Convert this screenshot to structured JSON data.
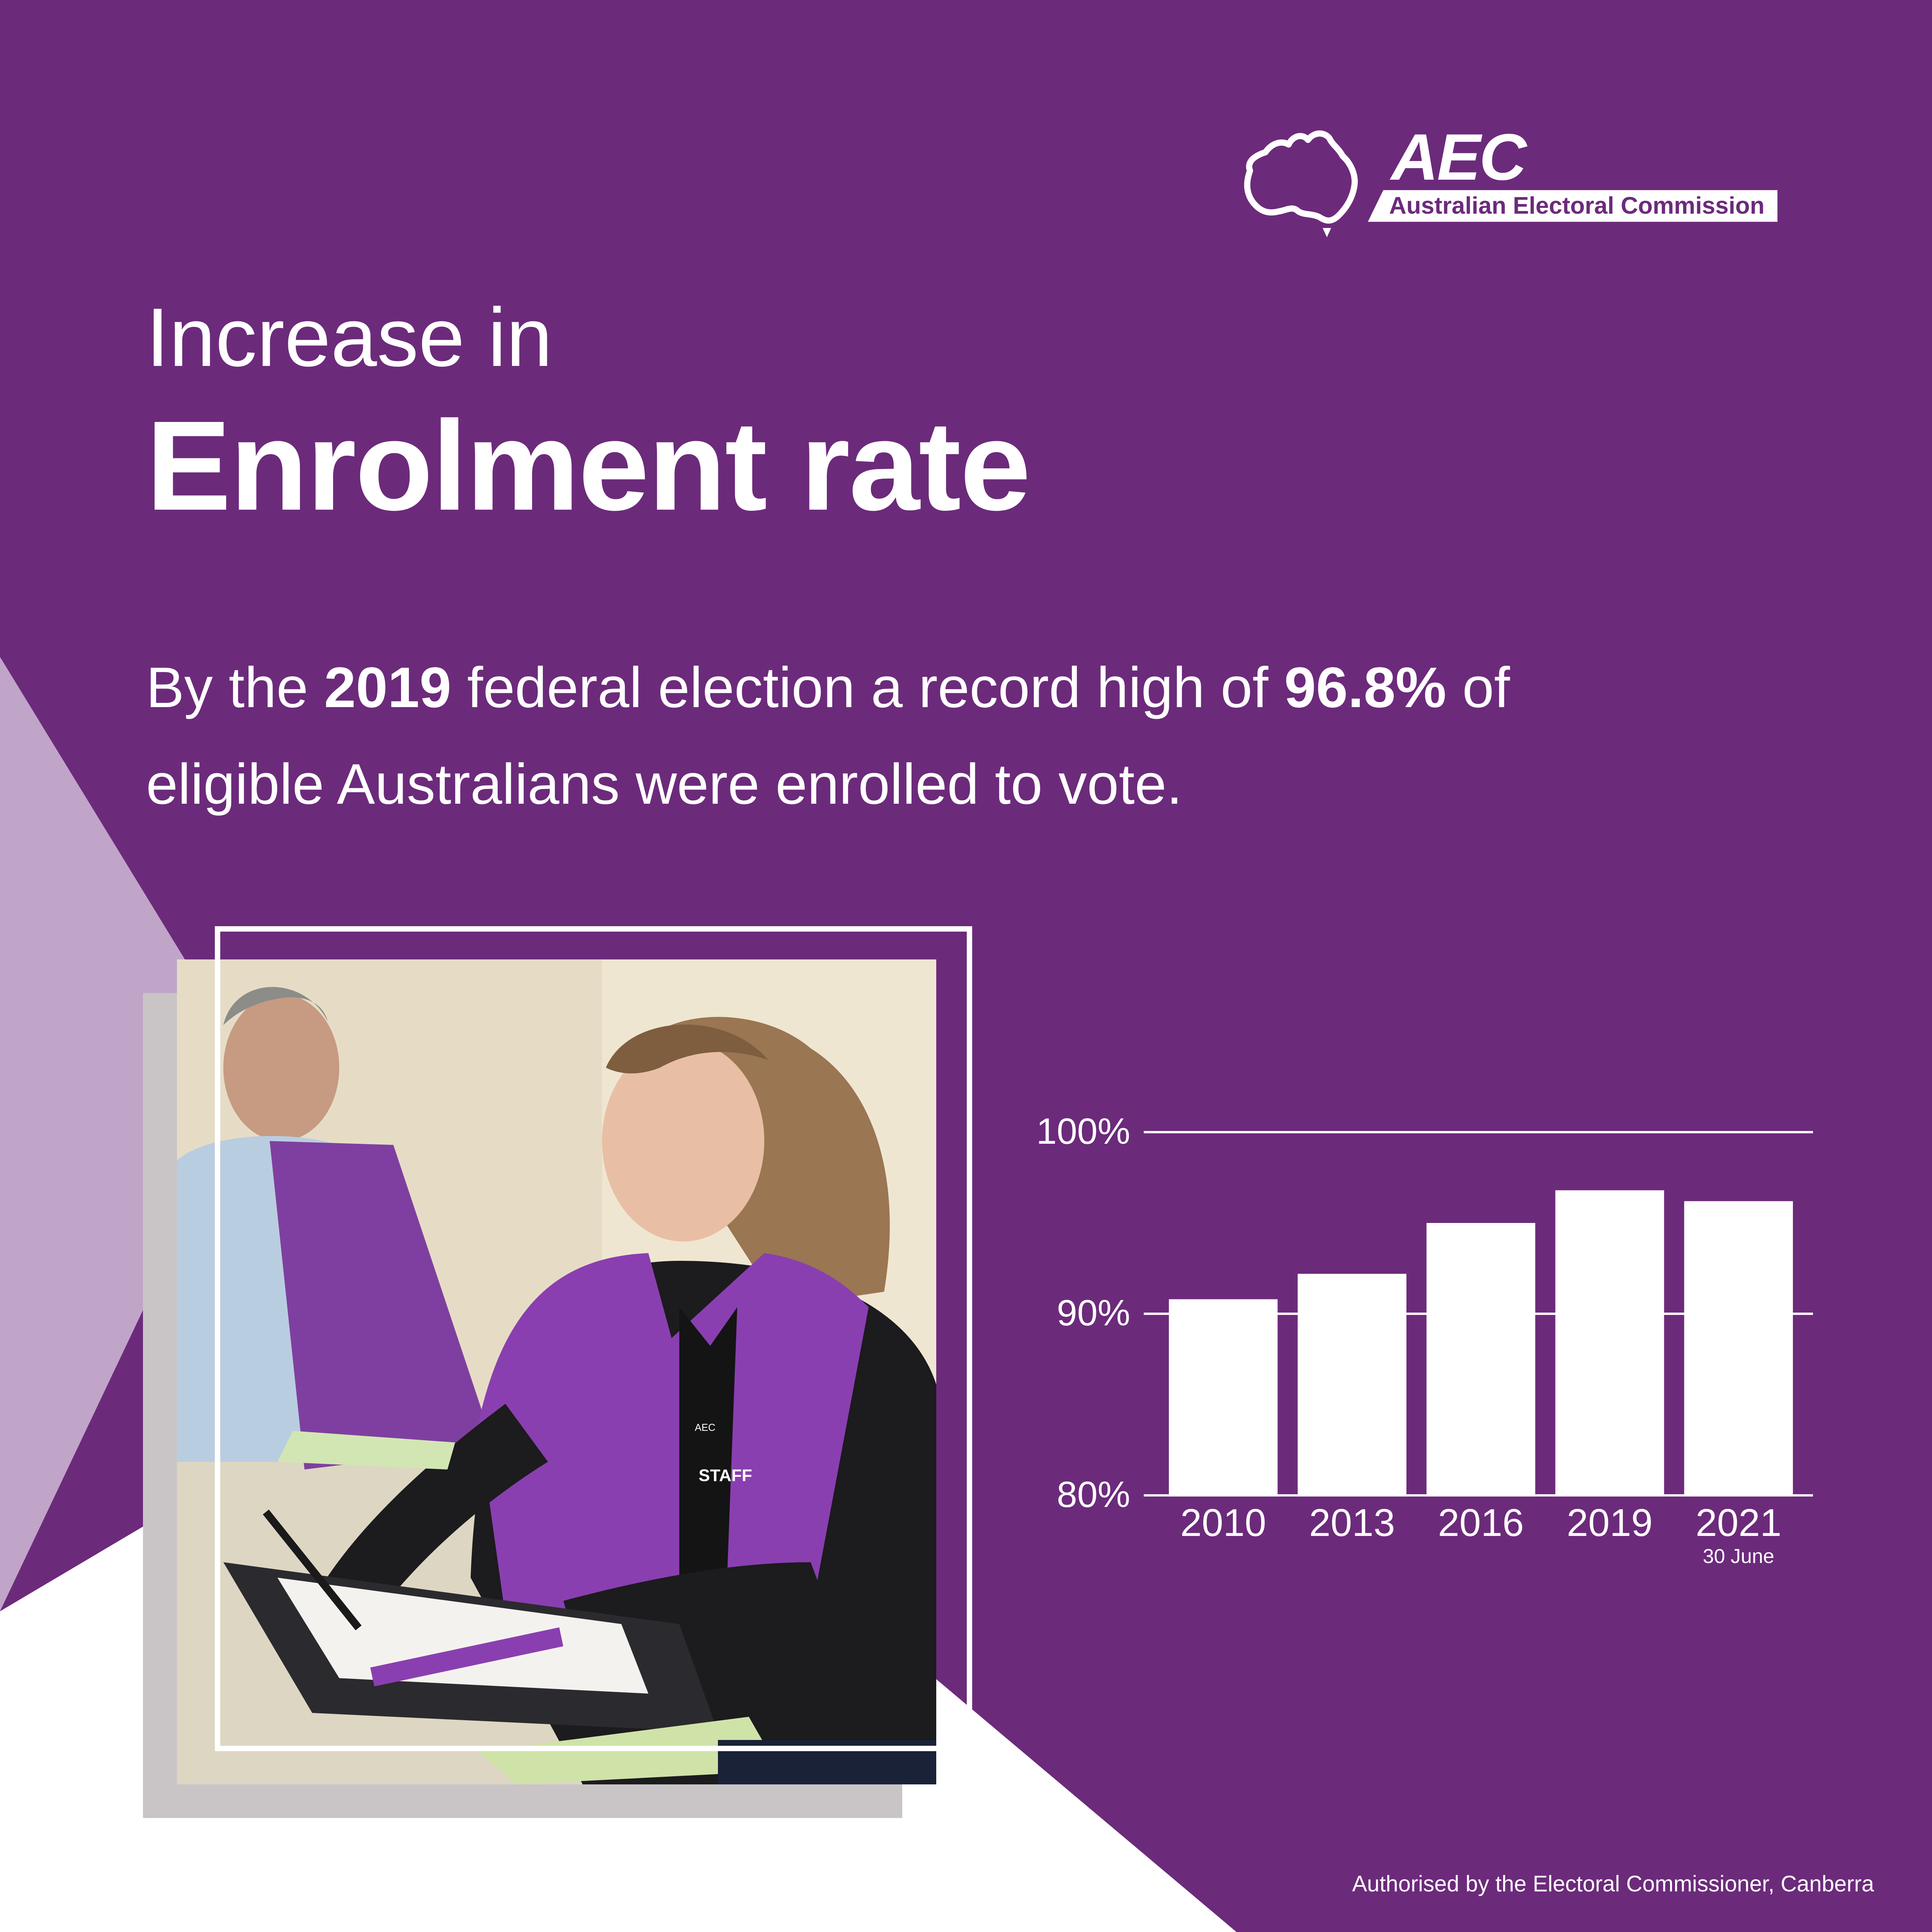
{
  "brand": {
    "acronym": "AEC",
    "name": "Australian Electoral Commission",
    "purple": "#6c2a7b",
    "light_purple": "#c0a5c8"
  },
  "headline": {
    "line1": "Increase in",
    "line2": "Enrolment rate"
  },
  "lead": {
    "part1": "By the ",
    "year": "2019",
    "part2": " federal election a record high of ",
    "rate": "96.8%",
    "part3": " of",
    "line2": "eligible Australians were enrolled to vote."
  },
  "photo": {
    "vest_text": "STAFF",
    "vest_logo": "AEC"
  },
  "chart_data": {
    "type": "bar",
    "categories": [
      "2010",
      "2013",
      "2016",
      "2019",
      "2021"
    ],
    "category_notes": [
      "",
      "",
      "",
      "",
      "30 June"
    ],
    "values": [
      90.8,
      92.2,
      95.0,
      96.8,
      96.2
    ],
    "ylim": [
      80,
      100
    ],
    "yticks": [
      "80%",
      "90%",
      "100%"
    ],
    "ytick_values": [
      80,
      90,
      100
    ],
    "grid": true,
    "bar_color": "#ffffff",
    "title": "",
    "xlabel": "",
    "ylabel": ""
  },
  "footer": {
    "text": "Authorised by the Electoral Commissioner, Canberra"
  }
}
